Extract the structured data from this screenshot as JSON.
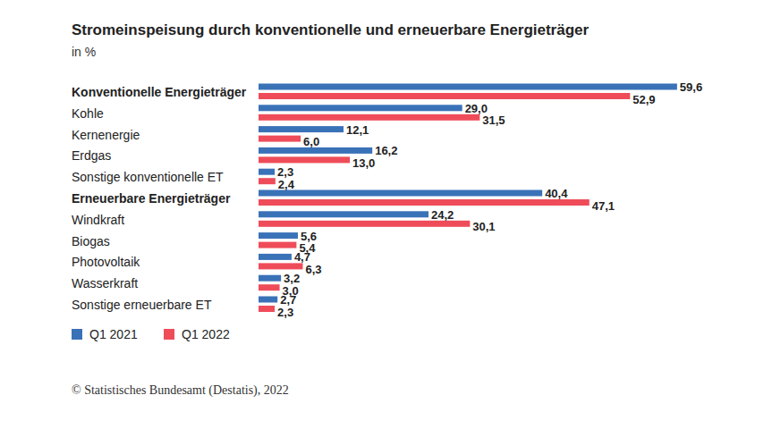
{
  "chart_data": {
    "type": "bar",
    "orientation": "horizontal",
    "title": "Stromeinspeisung durch konventionelle und erneuerbare Energieträger",
    "subtitle": "in %",
    "source": "© Statistisches Bundesamt (Destatis), 2022",
    "categories": [
      "Konventionelle Energieträger",
      "Kohle",
      "Kernenergie",
      "Erdgas",
      "Sonstige konventionelle ET",
      "Erneuerbare Energieträger",
      "Windkraft",
      "Biogas",
      "Photovoltaik",
      "Wasserkraft",
      "Sonstige erneuerbare ET"
    ],
    "series": [
      {
        "name": "Q1 2021",
        "color": "#3a72b8",
        "values": [
          59.6,
          29.0,
          12.1,
          16.2,
          2.3,
          40.4,
          24.2,
          5.6,
          4.7,
          3.2,
          2.7
        ],
        "value_labels": [
          "59,6",
          "29,0",
          "12,1",
          "16,2",
          "2,3",
          "40,4",
          "24,2",
          "5,6",
          "4,7",
          "3,2",
          "2,7"
        ]
      },
      {
        "name": "Q1 2022",
        "color": "#ef4c59",
        "values": [
          52.9,
          31.5,
          6.0,
          13.0,
          2.4,
          47.1,
          30.1,
          5.4,
          6.3,
          3.0,
          2.3
        ],
        "value_labels": [
          "52,9",
          "31,5",
          "6,0",
          "13,0",
          "2,4",
          "47,1",
          "30,1",
          "5,4",
          "6,3",
          "3,0",
          "2,3"
        ]
      }
    ],
    "xlim": [
      0,
      60
    ],
    "tick_labels": false,
    "grid": false,
    "data_labels": true,
    "legend": "bottom-left"
  }
}
